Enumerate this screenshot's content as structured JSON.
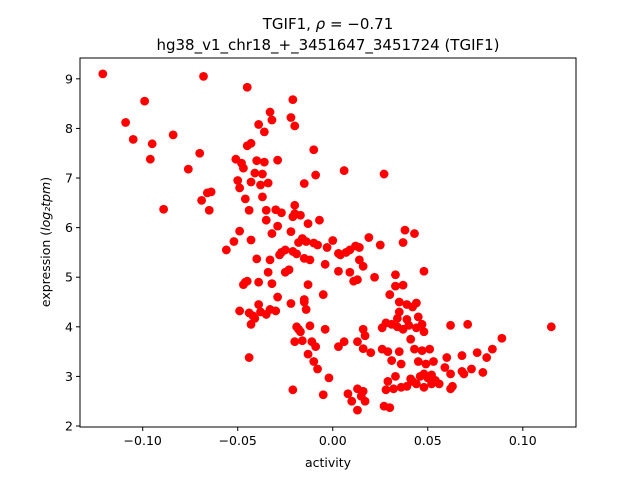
{
  "chart_data": {
    "type": "scatter",
    "title_line1": "TGIF1, ρ = −0.71",
    "title_line2": "hg38_v1_chr18_+_3451647_3451724 (TGIF1)",
    "xlabel": "activity",
    "ylabel": "expression (log₂tpm)",
    "xlim": [
      -0.133,
      0.128
    ],
    "ylim": [
      1.98,
      9.42
    ],
    "xticks": [
      -0.1,
      -0.05,
      0.0,
      0.05,
      0.1
    ],
    "xtick_labels": [
      "−0.10",
      "−0.05",
      "0.00",
      "0.05",
      "0.10"
    ],
    "yticks": [
      2,
      3,
      4,
      5,
      6,
      7,
      8,
      9
    ],
    "ytick_labels": [
      "2",
      "3",
      "4",
      "5",
      "6",
      "7",
      "8",
      "9"
    ],
    "marker_color": "#ff0000",
    "grid": false,
    "points": [
      [
        -0.121,
        9.1
      ],
      [
        -0.068,
        9.05
      ],
      [
        -0.045,
        8.83
      ],
      [
        -0.099,
        8.55
      ],
      [
        -0.021,
        8.58
      ],
      [
        -0.109,
        8.12
      ],
      [
        -0.033,
        8.33
      ],
      [
        -0.032,
        8.17
      ],
      [
        -0.022,
        8.22
      ],
      [
        -0.02,
        8.05
      ],
      [
        -0.039,
        8.08
      ],
      [
        -0.036,
        7.93
      ],
      [
        -0.084,
        7.87
      ],
      [
        -0.105,
        7.78
      ],
      [
        -0.095,
        7.69
      ],
      [
        -0.043,
        7.7
      ],
      [
        -0.045,
        7.65
      ],
      [
        -0.07,
        7.5
      ],
      [
        -0.096,
        7.38
      ],
      [
        -0.051,
        7.38
      ],
      [
        -0.048,
        7.3
      ],
      [
        -0.04,
        7.35
      ],
      [
        -0.036,
        7.32
      ],
      [
        -0.029,
        7.36
      ],
      [
        -0.01,
        7.57
      ],
      [
        -0.076,
        7.18
      ],
      [
        -0.047,
        7.2
      ],
      [
        -0.041,
        7.1
      ],
      [
        -0.037,
        7.08
      ],
      [
        -0.009,
        7.06
      ],
      [
        0.006,
        7.15
      ],
      [
        0.027,
        7.08
      ],
      [
        -0.05,
        6.95
      ],
      [
        -0.043,
        6.92
      ],
      [
        -0.038,
        6.86
      ],
      [
        -0.034,
        6.9
      ],
      [
        -0.049,
        6.8
      ],
      [
        -0.015,
        6.89
      ],
      [
        -0.066,
        6.7
      ],
      [
        -0.064,
        6.72
      ],
      [
        -0.069,
        6.55
      ],
      [
        -0.046,
        6.58
      ],
      [
        -0.037,
        6.62
      ],
      [
        -0.089,
        6.37
      ],
      [
        -0.065,
        6.35
      ],
      [
        -0.044,
        6.35
      ],
      [
        -0.035,
        6.35
      ],
      [
        -0.03,
        6.36
      ],
      [
        -0.027,
        6.3
      ],
      [
        -0.02,
        6.45
      ],
      [
        -0.02,
        6.28
      ],
      [
        -0.021,
        6.22
      ],
      [
        -0.017,
        6.25
      ],
      [
        -0.035,
        6.15
      ],
      [
        -0.029,
        6.03
      ],
      [
        -0.013,
        6.08
      ],
      [
        -0.007,
        6.15
      ],
      [
        -0.056,
        5.55
      ],
      [
        -0.049,
        5.93
      ],
      [
        -0.052,
        5.72
      ],
      [
        -0.043,
        5.75
      ],
      [
        -0.032,
        5.88
      ],
      [
        -0.022,
        5.92
      ],
      [
        -0.016,
        5.78
      ],
      [
        -0.018,
        5.7
      ],
      [
        -0.014,
        5.72
      ],
      [
        -0.01,
        5.69
      ],
      [
        -0.008,
        5.65
      ],
      [
        -0.003,
        5.6
      ],
      [
        0.0,
        5.74
      ],
      [
        0.003,
        5.48
      ],
      [
        0.009,
        5.55
      ],
      [
        0.012,
        5.63
      ],
      [
        0.014,
        5.6
      ],
      [
        0.019,
        5.8
      ],
      [
        0.025,
        5.65
      ],
      [
        0.038,
        5.95
      ],
      [
        0.043,
        5.88
      ],
      [
        0.037,
        5.7
      ],
      [
        -0.027,
        5.5
      ],
      [
        -0.025,
        5.55
      ],
      [
        -0.021,
        5.52
      ],
      [
        -0.019,
        5.47
      ],
      [
        -0.028,
        5.45
      ],
      [
        -0.015,
        5.38
      ],
      [
        -0.012,
        5.35
      ],
      [
        -0.004,
        5.26
      ],
      [
        0.004,
        5.45
      ],
      [
        0.007,
        5.5
      ],
      [
        0.014,
        5.35
      ],
      [
        -0.033,
        5.35
      ],
      [
        -0.04,
        5.37
      ],
      [
        -0.025,
        5.1
      ],
      [
        -0.023,
        5.15
      ],
      [
        -0.034,
        5.1
      ],
      [
        0.003,
        5.12
      ],
      [
        0.009,
        5.1
      ],
      [
        0.016,
        5.22
      ],
      [
        0.022,
        5.0
      ],
      [
        0.011,
        4.92
      ],
      [
        0.013,
        4.95
      ],
      [
        0.033,
        5.05
      ],
      [
        0.048,
        5.12
      ],
      [
        -0.046,
        4.9
      ],
      [
        -0.045,
        4.92
      ],
      [
        -0.047,
        4.85
      ],
      [
        -0.039,
        4.9
      ],
      [
        -0.032,
        4.87
      ],
      [
        -0.013,
        4.85
      ],
      [
        0.033,
        4.82
      ],
      [
        0.037,
        4.84
      ],
      [
        -0.029,
        4.6
      ],
      [
        -0.015,
        4.55
      ],
      [
        -0.015,
        4.5
      ],
      [
        -0.005,
        4.65
      ],
      [
        0.03,
        4.65
      ],
      [
        0.035,
        4.5
      ],
      [
        0.039,
        4.45
      ],
      [
        0.042,
        4.4
      ],
      [
        0.044,
        4.48
      ],
      [
        -0.039,
        4.45
      ],
      [
        -0.022,
        4.47
      ],
      [
        -0.049,
        4.32
      ],
      [
        -0.044,
        4.28
      ],
      [
        -0.042,
        4.22
      ],
      [
        -0.041,
        4.17
      ],
      [
        -0.038,
        4.3
      ],
      [
        -0.035,
        4.25
      ],
      [
        -0.033,
        4.35
      ],
      [
        -0.03,
        4.32
      ],
      [
        -0.014,
        4.35
      ],
      [
        0.035,
        4.3
      ],
      [
        0.034,
        4.17
      ],
      [
        0.039,
        4.15
      ],
      [
        0.045,
        4.2
      ],
      [
        0.047,
        4.05
      ],
      [
        -0.043,
        4.05
      ],
      [
        -0.019,
        4.0
      ],
      [
        -0.018,
        3.95
      ],
      [
        -0.017,
        3.9
      ],
      [
        -0.012,
        4.02
      ],
      [
        0.016,
        3.95
      ],
      [
        0.017,
        3.82
      ],
      [
        0.026,
        3.98
      ],
      [
        0.028,
        4.08
      ],
      [
        0.031,
        4.05
      ],
      [
        0.034,
        4.0
      ],
      [
        0.037,
        3.95
      ],
      [
        0.04,
        4.03
      ],
      [
        0.044,
        3.98
      ],
      [
        0.048,
        3.9
      ],
      [
        0.062,
        4.03
      ],
      [
        0.071,
        4.05
      ],
      [
        0.115,
        4.0
      ],
      [
        -0.004,
        3.95
      ],
      [
        -0.02,
        3.7
      ],
      [
        -0.016,
        3.72
      ],
      [
        -0.011,
        3.7
      ],
      [
        -0.009,
        3.6
      ],
      [
        0.003,
        3.6
      ],
      [
        0.006,
        3.7
      ],
      [
        0.013,
        3.7
      ],
      [
        0.016,
        3.56
      ],
      [
        0.02,
        3.48
      ],
      [
        0.026,
        3.55
      ],
      [
        0.029,
        3.5
      ],
      [
        0.035,
        3.5
      ],
      [
        0.041,
        3.75
      ],
      [
        0.043,
        3.55
      ],
      [
        0.047,
        3.52
      ],
      [
        0.051,
        3.55
      ],
      [
        0.06,
        3.38
      ],
      [
        0.068,
        3.42
      ],
      [
        0.076,
        3.48
      ],
      [
        0.084,
        3.55
      ],
      [
        0.089,
        3.77
      ],
      [
        -0.044,
        3.38
      ],
      [
        -0.013,
        3.45
      ],
      [
        -0.01,
        3.3
      ],
      [
        0.031,
        3.32
      ],
      [
        0.036,
        3.25
      ],
      [
        0.045,
        3.3
      ],
      [
        0.049,
        3.25
      ],
      [
        0.053,
        3.3
      ],
      [
        0.059,
        3.18
      ],
      [
        0.062,
        3.05
      ],
      [
        0.068,
        3.1
      ],
      [
        0.073,
        3.15
      ],
      [
        0.079,
        3.08
      ],
      [
        0.081,
        3.38
      ],
      [
        -0.008,
        3.15
      ],
      [
        -0.002,
        2.97
      ],
      [
        0.029,
        2.9
      ],
      [
        0.033,
        3.0
      ],
      [
        0.039,
        2.8
      ],
      [
        0.041,
        2.95
      ],
      [
        0.042,
        2.9
      ],
      [
        0.044,
        2.85
      ],
      [
        0.046,
        3.0
      ],
      [
        0.048,
        3.05
      ],
      [
        0.05,
        2.97
      ],
      [
        0.052,
        3.03
      ],
      [
        0.054,
        2.92
      ],
      [
        0.056,
        2.85
      ],
      [
        0.063,
        2.8
      ],
      [
        0.069,
        3.05
      ],
      [
        -0.021,
        2.73
      ],
      [
        -0.005,
        2.63
      ],
      [
        0.008,
        2.65
      ],
      [
        0.016,
        2.7
      ],
      [
        0.013,
        2.75
      ],
      [
        0.015,
        2.6
      ],
      [
        0.028,
        2.73
      ],
      [
        0.032,
        2.75
      ],
      [
        0.036,
        2.78
      ],
      [
        0.048,
        2.78
      ],
      [
        0.052,
        2.85
      ],
      [
        0.062,
        2.75
      ],
      [
        0.01,
        2.5
      ],
      [
        0.017,
        2.5
      ],
      [
        0.013,
        2.32
      ],
      [
        0.027,
        2.4
      ],
      [
        0.03,
        2.37
      ]
    ]
  }
}
